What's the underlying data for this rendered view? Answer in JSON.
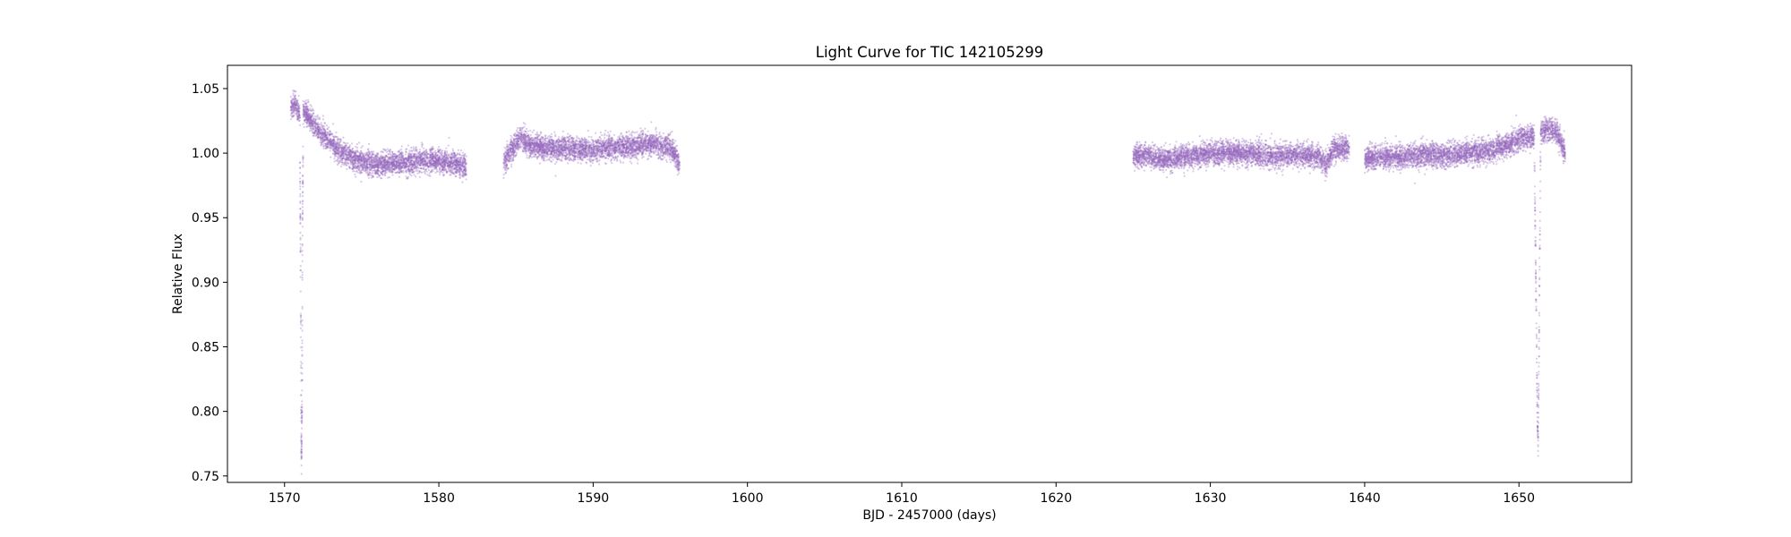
{
  "chart_data": {
    "type": "scatter",
    "title": "Light Curve for TIC 142105299",
    "xlabel": "BJD - 2457000 (days)",
    "ylabel": "Relative Flux",
    "xlim": [
      1566.3,
      1657.3
    ],
    "ylim": [
      0.745,
      1.068
    ],
    "xticks": [
      1570,
      1580,
      1590,
      1600,
      1610,
      1620,
      1630,
      1640,
      1650
    ],
    "xtick_labels": [
      "1570",
      "1580",
      "1590",
      "1600",
      "1610",
      "1620",
      "1630",
      "1640",
      "1650"
    ],
    "yticks": [
      0.75,
      0.8,
      0.85,
      0.9,
      0.95,
      1.0,
      1.05
    ],
    "ytick_labels": [
      "0.75",
      "0.80",
      "0.85",
      "0.90",
      "0.95",
      "1.00",
      "1.05"
    ],
    "grid": false,
    "marker_color": "#9467bd",
    "marker_opacity": 0.35,
    "series": [
      {
        "data_segments": [
          {
            "x_range": [
              1570.4,
              1571.0
            ],
            "points": [
              [
                1570.4,
                1.035
              ],
              [
                1570.7,
                1.038
              ],
              [
                1570.95,
                1.03
              ]
            ]
          },
          {
            "x_range": [
              1571.0,
              1571.2
            ],
            "points": [
              [
                1571.0,
                1.0
              ],
              [
                1571.05,
                0.9
              ],
              [
                1571.08,
                0.78
              ],
              [
                1571.1,
                0.76
              ],
              [
                1571.13,
                0.8
              ],
              [
                1571.17,
                0.95
              ],
              [
                1571.2,
                1.0
              ]
            ]
          },
          {
            "x_range": [
              1571.2,
              1581.8
            ],
            "points": [
              [
                1571.2,
                1.033
              ],
              [
                1572.0,
                1.02
              ],
              [
                1573.0,
                1.008
              ],
              [
                1574.0,
                0.998
              ],
              [
                1575.0,
                0.993
              ],
              [
                1576.0,
                0.991
              ],
              [
                1577.0,
                0.992
              ],
              [
                1578.0,
                0.993
              ],
              [
                1579.0,
                0.995
              ],
              [
                1580.0,
                0.994
              ],
              [
                1581.0,
                0.992
              ],
              [
                1581.8,
                0.989
              ]
            ]
          },
          {
            "x_range": [
              1584.2,
              1595.6
            ],
            "points": [
              [
                1584.2,
                0.992
              ],
              [
                1584.8,
                1.005
              ],
              [
                1585.3,
                1.012
              ],
              [
                1586.0,
                1.006
              ],
              [
                1587.0,
                1.004
              ],
              [
                1588.0,
                1.004
              ],
              [
                1589.0,
                1.003
              ],
              [
                1590.0,
                1.003
              ],
              [
                1591.0,
                1.004
              ],
              [
                1592.0,
                1.005
              ],
              [
                1593.0,
                1.006
              ],
              [
                1594.0,
                1.007
              ],
              [
                1595.0,
                1.004
              ],
              [
                1595.6,
                0.992
              ]
            ]
          },
          {
            "x_range": [
              1625.0,
              1639.0
            ],
            "points": [
              [
                1625.0,
                0.998
              ],
              [
                1626.0,
                0.998
              ],
              [
                1627.0,
                0.995
              ],
              [
                1628.0,
                0.997
              ],
              [
                1629.0,
                0.998
              ],
              [
                1630.0,
                0.999
              ],
              [
                1631.0,
                1.0
              ],
              [
                1632.0,
                1.0
              ],
              [
                1633.0,
                0.999
              ],
              [
                1634.0,
                0.998
              ],
              [
                1635.0,
                0.998
              ],
              [
                1636.0,
                0.999
              ],
              [
                1637.0,
                0.997
              ],
              [
                1637.5,
                0.992
              ],
              [
                1638.0,
                1.003
              ],
              [
                1639.0,
                1.004
              ]
            ]
          },
          {
            "x_range": [
              1640.0,
              1651.0
            ],
            "points": [
              [
                1640.0,
                0.995
              ],
              [
                1641.0,
                0.997
              ],
              [
                1642.0,
                0.997
              ],
              [
                1643.0,
                0.998
              ],
              [
                1644.0,
                0.999
              ],
              [
                1645.0,
                0.998
              ],
              [
                1646.0,
                0.999
              ],
              [
                1647.0,
                1.001
              ],
              [
                1648.0,
                1.002
              ],
              [
                1649.0,
                1.005
              ],
              [
                1650.0,
                1.011
              ],
              [
                1651.0,
                1.013
              ]
            ]
          },
          {
            "x_range": [
              1651.0,
              1651.4
            ],
            "points": [
              [
                1651.0,
                1.0
              ],
              [
                1651.1,
                0.9
              ],
              [
                1651.2,
                0.79
              ],
              [
                1651.25,
                0.775
              ],
              [
                1651.3,
                0.85
              ],
              [
                1651.4,
                1.0
              ]
            ]
          },
          {
            "x_range": [
              1651.4,
              1653.0
            ],
            "points": [
              [
                1651.4,
                1.016
              ],
              [
                1652.0,
                1.019
              ],
              [
                1652.5,
                1.016
              ],
              [
                1653.0,
                1.0
              ]
            ]
          }
        ]
      }
    ]
  }
}
